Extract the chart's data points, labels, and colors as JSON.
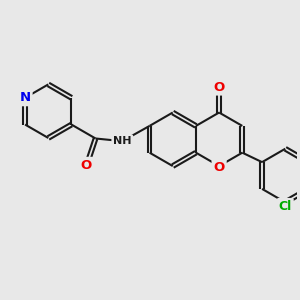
{
  "background_color": "#e8e8e8",
  "bond_color": "#1a1a1a",
  "bond_width": 1.5,
  "atom_colors": {
    "N": "#0000ee",
    "O": "#ee0000",
    "Cl": "#00aa00",
    "C": "#1a1a1a",
    "H": "#1a1a1a"
  },
  "font_size": 8.5,
  "fig_size": [
    3.0,
    3.0
  ],
  "dpi": 100
}
